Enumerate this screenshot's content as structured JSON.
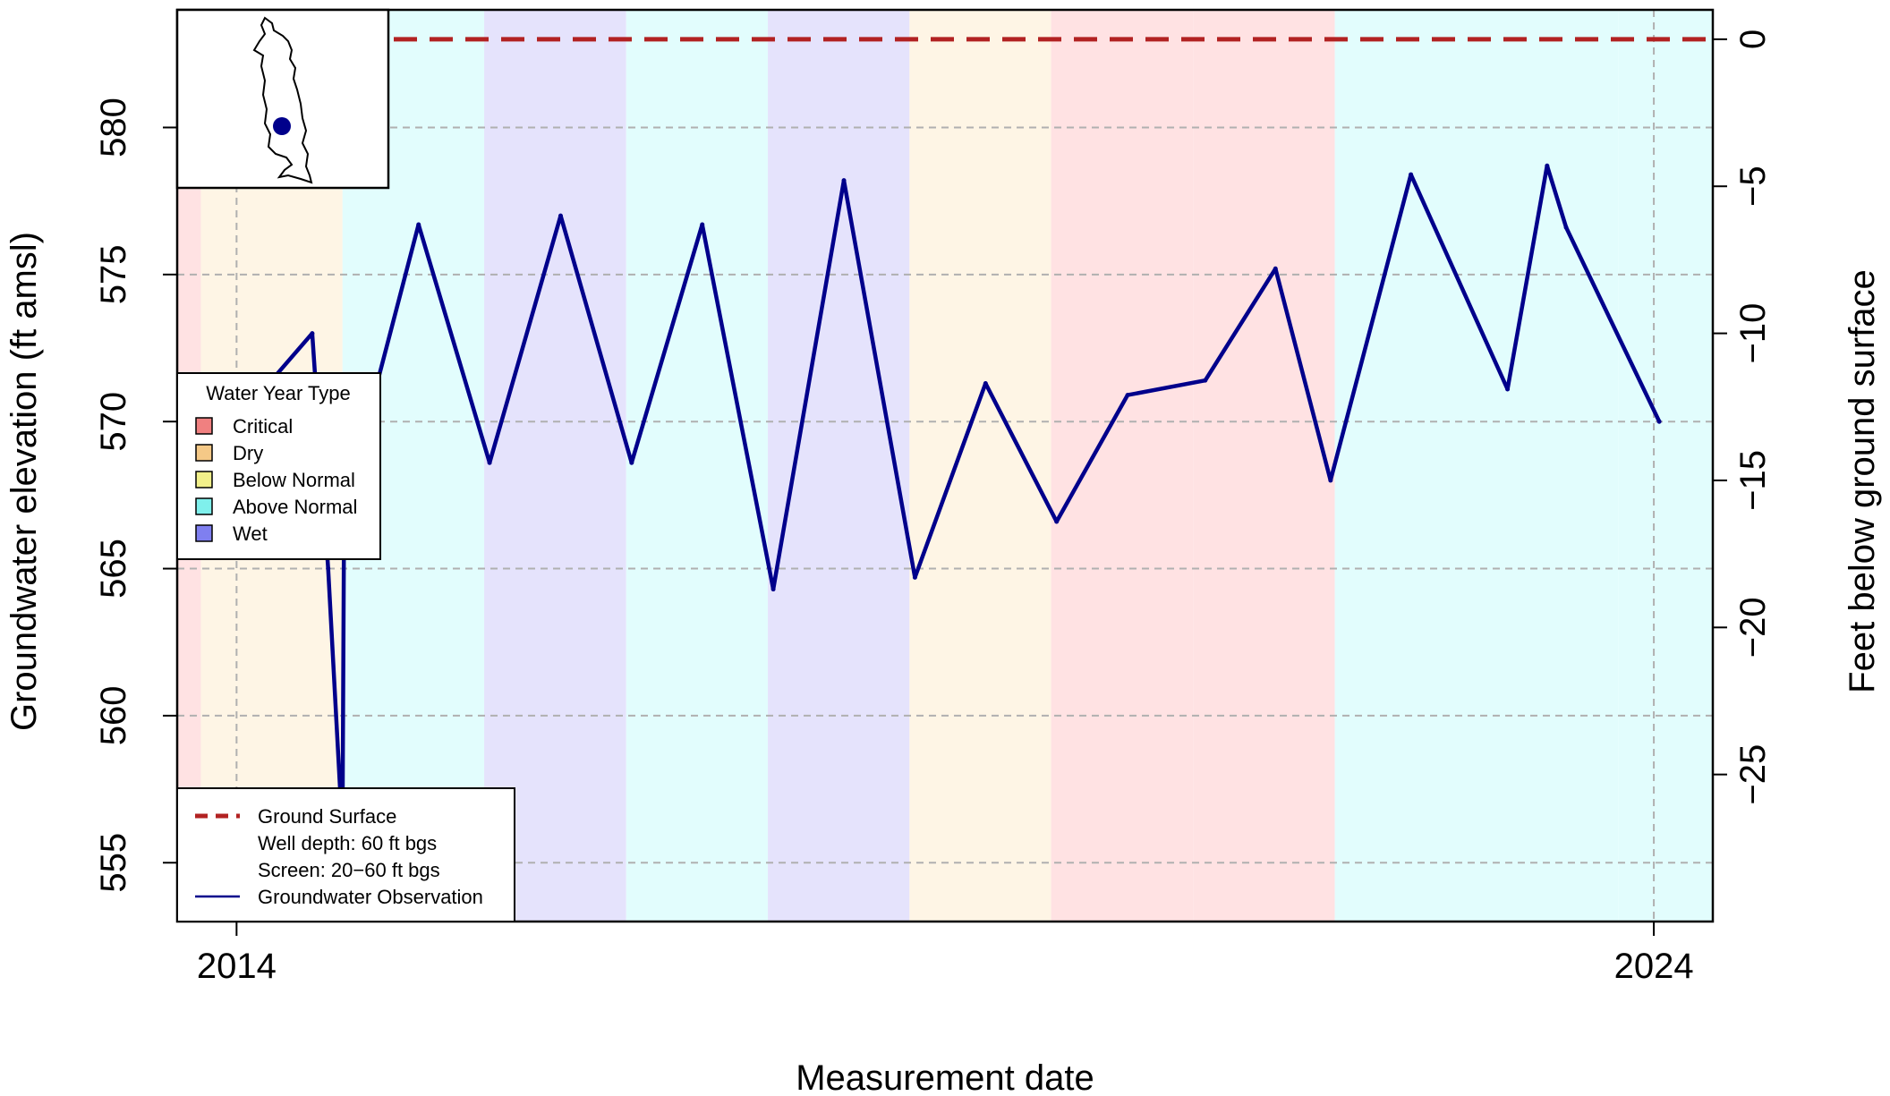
{
  "chart_data": {
    "type": "line",
    "xlabel": "Measurement date",
    "ylabel": "Groundwater elevation (ft amsl)",
    "ylabel_right": "Feet below ground surface",
    "xlim": [
      "2013-08-01",
      "2024-06-01"
    ],
    "ylim": [
      553,
      584
    ],
    "x_ticks": [
      {
        "date": "2014-01-01",
        "label": "2014"
      },
      {
        "date": "2024-01-01",
        "label": "2024"
      }
    ],
    "y_ticks": [
      555,
      560,
      565,
      570,
      575,
      580
    ],
    "y_ticks_right": [
      0,
      -5,
      -10,
      -15,
      -20,
      -25
    ],
    "ground_surface_elevation": 583,
    "grid": true,
    "water_year_bands": [
      {
        "start": "2013-08-01",
        "end": "2013-10-01",
        "type": "Critical"
      },
      {
        "start": "2013-10-01",
        "end": "2014-10-01",
        "type": "Dry"
      },
      {
        "start": "2014-10-01",
        "end": "2015-10-01",
        "type": "Above Normal"
      },
      {
        "start": "2015-10-01",
        "end": "2016-10-01",
        "type": "Wet"
      },
      {
        "start": "2016-10-01",
        "end": "2017-10-01",
        "type": "Above Normal"
      },
      {
        "start": "2017-10-01",
        "end": "2018-10-01",
        "type": "Wet"
      },
      {
        "start": "2018-10-01",
        "end": "2019-10-01",
        "type": "Dry"
      },
      {
        "start": "2019-10-01",
        "end": "2020-10-01",
        "type": "Critical"
      },
      {
        "start": "2020-10-01",
        "end": "2021-10-01",
        "type": "Critical"
      },
      {
        "start": "2021-10-01",
        "end": "2023-10-01",
        "type": "Above Normal"
      },
      {
        "start": "2023-10-01",
        "end": "2024-06-01",
        "type": "Above Normal"
      }
    ],
    "series": [
      {
        "name": "Groundwater Observation",
        "color": "#00008B",
        "points": [
          {
            "date": "2014-04-01",
            "value": 571.4
          },
          {
            "date": "2014-07-15",
            "value": 573.0
          },
          {
            "date": "2014-08-25",
            "value": 565.0
          },
          {
            "date": "2014-10-01",
            "value": 556.0
          },
          {
            "date": "2014-10-05",
            "value": 567.0
          },
          {
            "date": "2015-04-15",
            "value": 576.7
          },
          {
            "date": "2015-10-15",
            "value": 568.6
          },
          {
            "date": "2016-04-15",
            "value": 577.0
          },
          {
            "date": "2016-10-15",
            "value": 568.6
          },
          {
            "date": "2017-04-15",
            "value": 576.7
          },
          {
            "date": "2017-10-15",
            "value": 564.3
          },
          {
            "date": "2018-04-15",
            "value": 578.2
          },
          {
            "date": "2018-10-15",
            "value": 564.7
          },
          {
            "date": "2019-04-15",
            "value": 571.3
          },
          {
            "date": "2019-10-15",
            "value": 566.6
          },
          {
            "date": "2020-04-15",
            "value": 570.9
          },
          {
            "date": "2020-11-01",
            "value": 571.4
          },
          {
            "date": "2021-05-01",
            "value": 575.2
          },
          {
            "date": "2021-09-20",
            "value": 568.0
          },
          {
            "date": "2022-04-15",
            "value": 578.4
          },
          {
            "date": "2022-12-20",
            "value": 571.1
          },
          {
            "date": "2023-04-01",
            "value": 578.7
          },
          {
            "date": "2023-05-20",
            "value": 576.6
          },
          {
            "date": "2024-01-15",
            "value": 570.0
          }
        ]
      }
    ],
    "legend_water_year": {
      "title": "Water Year Type",
      "items": [
        {
          "label": "Critical",
          "swatch": "#F08080"
        },
        {
          "label": "Dry",
          "swatch": "#F5C987"
        },
        {
          "label": "Below Normal",
          "swatch": "#F2F08A"
        },
        {
          "label": "Above Normal",
          "swatch": "#7FF0EC"
        },
        {
          "label": "Wet",
          "swatch": "#7F7FF0"
        }
      ]
    },
    "legend_series": {
      "items": [
        {
          "label": "Ground Surface",
          "style": "dashed",
          "color": "#B22222"
        },
        {
          "label": "Well depth: 60 ft bgs",
          "style": "none"
        },
        {
          "label": "Screen: 20−60 ft bgs",
          "style": "none"
        },
        {
          "label": "Groundwater Observation",
          "style": "solid",
          "color": "#00008B"
        }
      ]
    },
    "band_colors": {
      "Critical": "#FFE2E3",
      "Dry": "#FEF5E5",
      "Below Normal": "#FDFDE2",
      "Above Normal": "#E2FDFD",
      "Wet": "#E5E3FC"
    }
  }
}
